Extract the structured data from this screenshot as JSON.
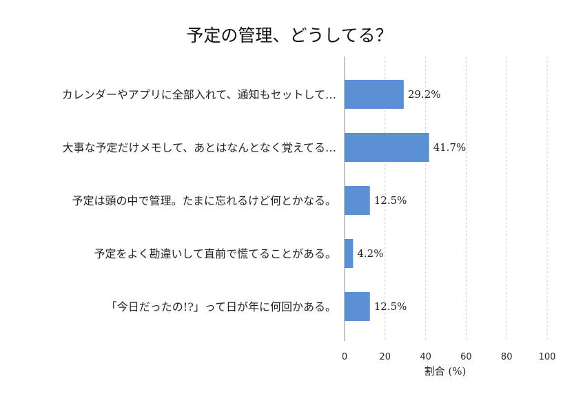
{
  "chart_data": {
    "type": "bar",
    "orientation": "horizontal",
    "title": "予定の管理、どうしてる？",
    "xlabel": "割合 (%)",
    "ylabel": "",
    "xlim": [
      0,
      100
    ],
    "xticks": [
      0,
      20,
      40,
      60,
      80,
      100
    ],
    "grid": true,
    "categories": [
      "カレンダーやアプリに全部入れて、通知もセットして…",
      "大事な予定だけメモして、あとはなんとなく覚えてる…",
      "予定は頭の中で管理。たまに忘れるけど何とかなる。",
      "予定をよく勘違いして直前で慌てることがある。",
      "「今日だったの!?」って日が年に何回かある。"
    ],
    "values": [
      29.2,
      41.7,
      12.5,
      4.2,
      12.5
    ],
    "value_labels": [
      "29.2%",
      "41.7%",
      "12.5%",
      "4.2%",
      "12.5%"
    ],
    "bar_color": "#5b8fd4"
  }
}
